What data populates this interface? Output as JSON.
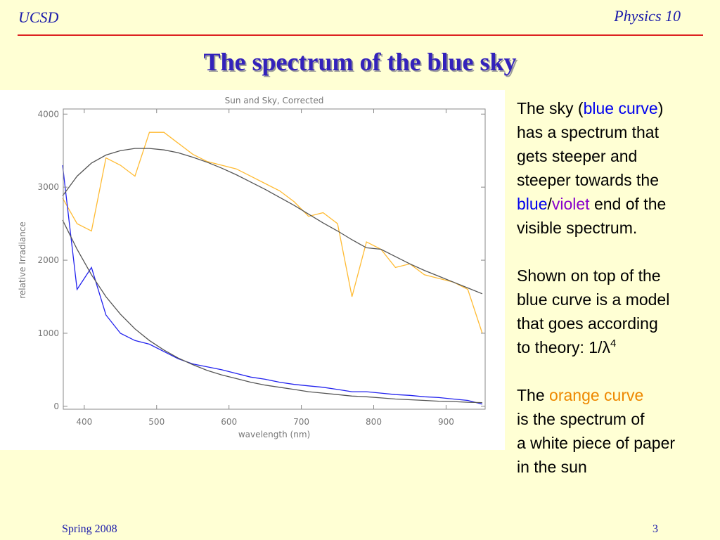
{
  "header": {
    "left": "UCSD",
    "right": "Physics 10"
  },
  "title": "The spectrum of the blue sky",
  "chart_data": {
    "type": "line",
    "title": "Sun and Sky, Corrected",
    "x_label": "wavelength (nm)",
    "y_label": "relative Irradiance",
    "xlim": [
      371,
      954
    ],
    "ylim": [
      -40,
      4070
    ],
    "xticks": [
      400,
      500,
      600,
      700,
      800,
      900
    ],
    "yticks": [
      0,
      1000,
      2000,
      3000,
      4000
    ],
    "x": [
      370,
      390,
      410,
      430,
      450,
      470,
      490,
      510,
      530,
      550,
      570,
      590,
      610,
      630,
      650,
      670,
      690,
      710,
      730,
      750,
      770,
      790,
      810,
      830,
      850,
      870,
      890,
      910,
      930,
      950
    ],
    "series": [
      {
        "color": "#ffbb33",
        "values": [
          2850,
          2500,
          2400,
          3400,
          3300,
          3150,
          3750,
          3750,
          3600,
          3450,
          3350,
          3300,
          3250,
          3150,
          3050,
          2950,
          2800,
          2600,
          2650,
          2500,
          1500,
          2250,
          2150,
          1900,
          1950,
          1800,
          1750,
          1700,
          1600,
          1000
        ]
      },
      {
        "color": "#2222ee",
        "values": [
          3300,
          1600,
          1900,
          1250,
          1000,
          900,
          850,
          750,
          650,
          580,
          540,
          500,
          450,
          400,
          370,
          330,
          300,
          280,
          260,
          230,
          200,
          200,
          180,
          160,
          150,
          130,
          120,
          100,
          80,
          30
        ]
      },
      {
        "color": "#555555",
        "values": [
          2880,
          3150,
          3330,
          3440,
          3500,
          3530,
          3530,
          3510,
          3470,
          3410,
          3340,
          3260,
          3170,
          3070,
          2970,
          2860,
          2750,
          2630,
          2510,
          2400,
          2280,
          2170,
          2150,
          2050,
          1950,
          1860,
          1780,
          1700,
          1620,
          1540
        ]
      },
      {
        "color": "#555555",
        "values": [
          2550,
          2150,
          1800,
          1500,
          1260,
          1060,
          900,
          770,
          660,
          570,
          490,
          430,
          380,
          330,
          290,
          260,
          230,
          200,
          180,
          160,
          140,
          130,
          115,
          100,
          90,
          80,
          70,
          65,
          55,
          50
        ]
      }
    ]
  },
  "text": [
    [
      [
        {
          "text": "The sky ("
        },
        {
          "text": "blue curve",
          "color": "#0000ee"
        },
        {
          "text": ")"
        }
      ],
      [
        {
          "text": "has a spectrum that"
        }
      ],
      [
        {
          "text": "gets steeper and"
        }
      ],
      [
        {
          "text": "steeper towards the"
        }
      ],
      [
        {
          "text": "blue",
          "color": "#0000ee"
        },
        {
          "text": "/"
        },
        {
          "text": "violet",
          "color": "#8800cc"
        },
        {
          "text": " end of the"
        }
      ],
      [
        {
          "text": "visible spectrum."
        }
      ]
    ],
    [
      [
        {
          "text": "Shown on top of the"
        }
      ],
      [
        {
          "text": "blue curve is a model"
        }
      ],
      [
        {
          "text": "that goes according"
        }
      ],
      [
        {
          "text": "to theory: 1/λ"
        },
        {
          "text": "4",
          "sup": true
        }
      ]
    ],
    [
      [
        {
          "text": "The "
        },
        {
          "text": "orange curve",
          "color": "#ee8800"
        }
      ],
      [
        {
          "text": "is the spectrum of"
        }
      ],
      [
        {
          "text": "a white piece of paper"
        }
      ],
      [
        {
          "text": "in the sun"
        }
      ]
    ]
  ],
  "footer": {
    "left": "Spring 2008",
    "right": "3"
  }
}
